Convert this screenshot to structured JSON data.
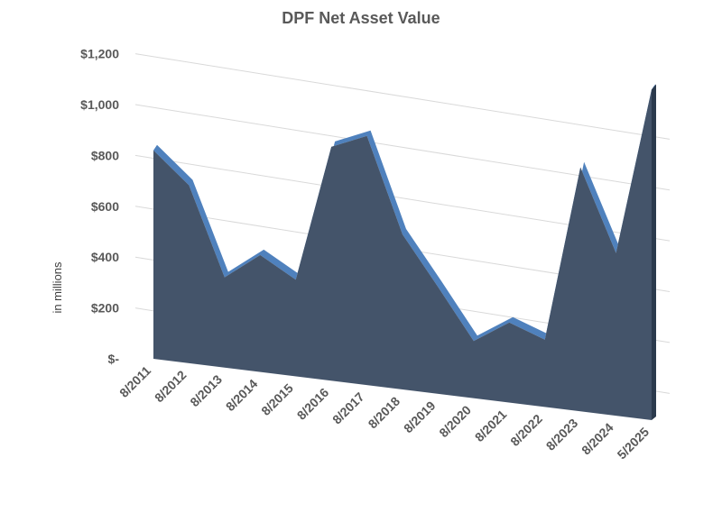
{
  "chart_data": {
    "type": "area",
    "title": "DPF Net Asset Value",
    "xlabel": "",
    "ylabel": "in millions",
    "categories": [
      "8/2011",
      "8/2012",
      "8/2013",
      "8/2014",
      "8/2015",
      "8/2016",
      "8/2017",
      "8/2018",
      "8/2019",
      "8/2020",
      "8/2021",
      "8/2022",
      "8/2023",
      "8/2024",
      "5/2025"
    ],
    "values": [
      820,
      700,
      355,
      460,
      380,
      920,
      980,
      610,
      420,
      225,
      315,
      265,
      960,
      640,
      1300
    ],
    "yticks": [
      "$-",
      "$200",
      "$400",
      "$600",
      "$800",
      "$1,000",
      "$1,200"
    ],
    "ylim": [
      0,
      1200
    ],
    "grid": true,
    "legend": "none",
    "colors": {
      "area_front": "#44546a",
      "area_top": "#4f81bd",
      "area_side": "#2b3a4d",
      "grid": "#d9d9d9",
      "text": "#595959"
    }
  }
}
